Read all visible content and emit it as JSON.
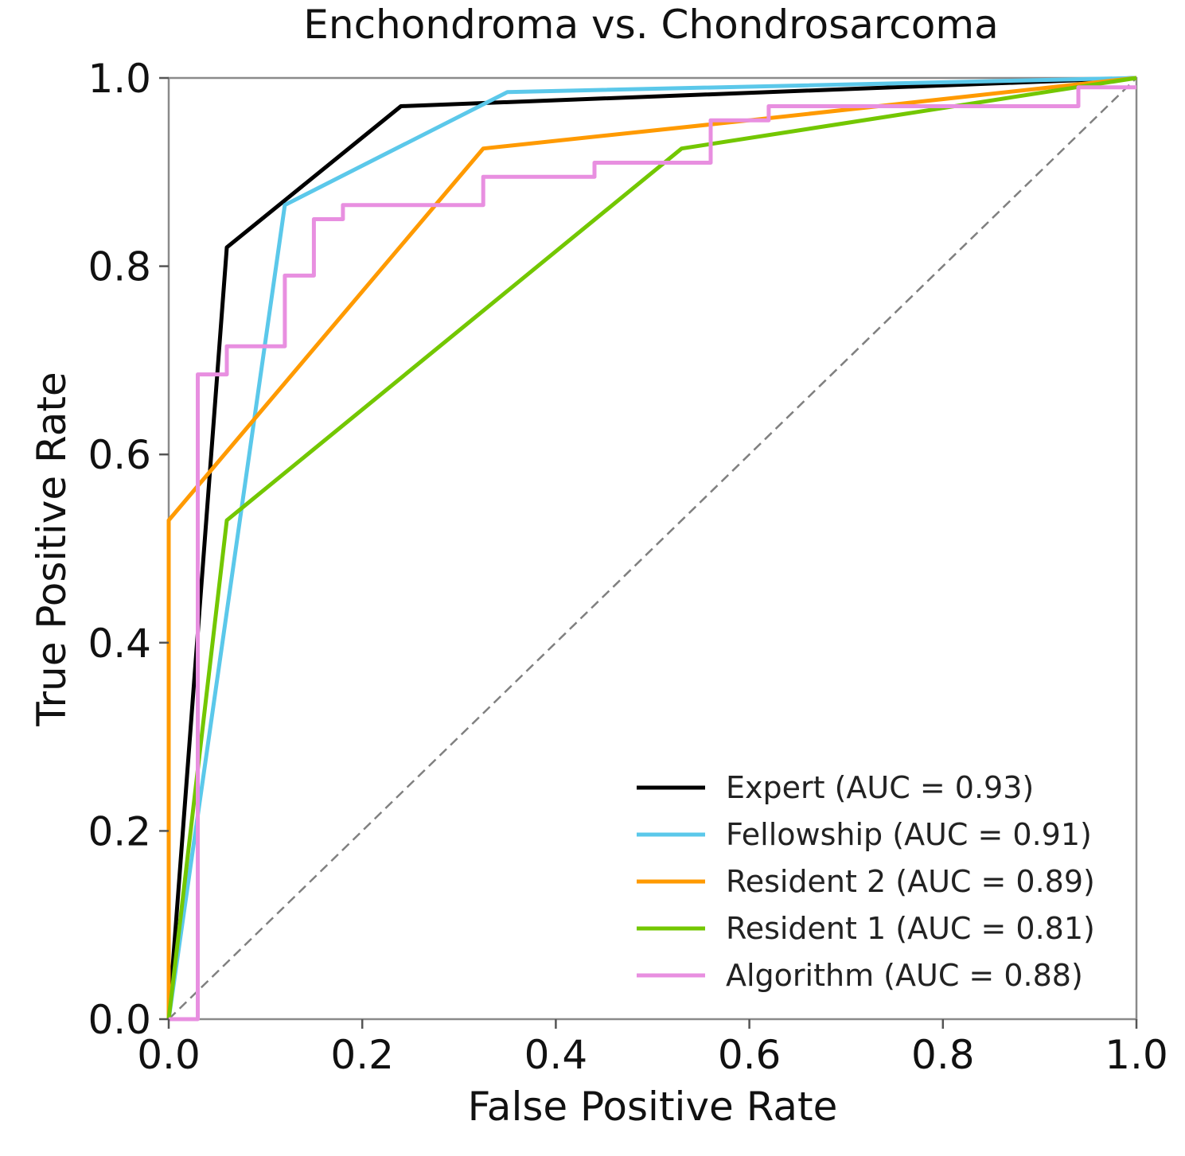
{
  "chart_data": {
    "type": "line",
    "title": "Enchondroma vs. Chondrosarcoma",
    "xlabel": "False Positive Rate",
    "ylabel": "True Positive Rate",
    "xlim": [
      0,
      1
    ],
    "ylim": [
      0,
      1
    ],
    "x_ticks": [
      "0.0",
      "0.2",
      "0.4",
      "0.6",
      "0.8",
      "1.0"
    ],
    "y_ticks": [
      "0.0",
      "0.2",
      "0.4",
      "0.6",
      "0.8",
      "1.0"
    ],
    "grid": false,
    "legend_position": "bottom-right",
    "reference_line": {
      "x": [
        0,
        1
      ],
      "y": [
        0,
        1
      ],
      "style": "dashed",
      "color": "#808080"
    },
    "series": [
      {
        "name": "Expert (AUC = 0.93)",
        "color": "#000000",
        "x": [
          0,
          0.06,
          0.12,
          0.24,
          1
        ],
        "y": [
          0,
          0.82,
          0.87,
          0.97,
          1
        ]
      },
      {
        "name": "Fellowship (AUC = 0.91)",
        "color": "#5bc8ea",
        "x": [
          0,
          0.12,
          0.35,
          1
        ],
        "y": [
          0,
          0.865,
          0.985,
          1
        ]
      },
      {
        "name": "Resident 2 (AUC = 0.89)",
        "color": "#ff9a00",
        "x": [
          0,
          0,
          0.325,
          0.6,
          1
        ],
        "y": [
          0,
          0.53,
          0.925,
          0.955,
          1
        ]
      },
      {
        "name": "Resident 1 (AUC = 0.81)",
        "color": "#73c700",
        "x": [
          0,
          0.06,
          0.53,
          1
        ],
        "y": [
          0,
          0.53,
          0.925,
          1
        ]
      },
      {
        "name": "Algorithm (AUC = 0.88)",
        "color": "#e88fe0",
        "x": [
          0,
          0.03,
          0.03,
          0.06,
          0.06,
          0.12,
          0.12,
          0.15,
          0.15,
          0.18,
          0.18,
          0.325,
          0.325,
          0.44,
          0.44,
          0.56,
          0.56,
          0.62,
          0.62,
          0.94,
          0.94,
          1
        ],
        "y": [
          0,
          0,
          0.685,
          0.685,
          0.715,
          0.715,
          0.79,
          0.79,
          0.85,
          0.85,
          0.865,
          0.865,
          0.895,
          0.895,
          0.91,
          0.91,
          0.955,
          0.955,
          0.97,
          0.97,
          0.99,
          0.99
        ]
      }
    ]
  }
}
